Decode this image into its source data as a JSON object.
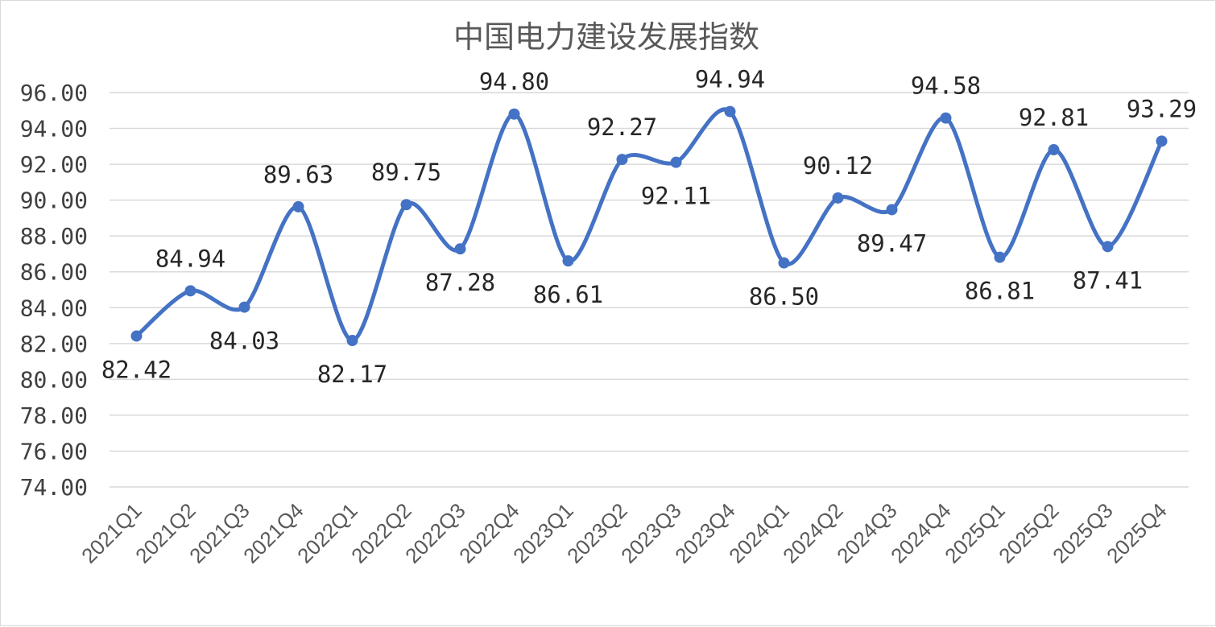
{
  "chart_data": {
    "type": "line",
    "title": "中国电力建设发展指数",
    "categories": [
      "2021Q1",
      "2021Q2",
      "2021Q3",
      "2021Q4",
      "2022Q1",
      "2022Q2",
      "2022Q3",
      "2022Q4",
      "2023Q1",
      "2023Q2",
      "2023Q3",
      "2023Q4",
      "2024Q1",
      "2024Q2",
      "2024Q3",
      "2024Q4",
      "2025Q1",
      "2025Q2",
      "2025Q3",
      "2025Q4"
    ],
    "values": [
      82.42,
      84.94,
      84.03,
      89.63,
      82.17,
      89.75,
      87.28,
      94.8,
      86.61,
      92.27,
      92.11,
      94.94,
      86.5,
      90.12,
      89.47,
      94.58,
      86.81,
      92.81,
      87.41,
      93.29
    ],
    "data_labels": [
      "82.42",
      "84.94",
      "84.03",
      "89.63",
      "82.17",
      "89.75",
      "87.28",
      "94.80",
      "86.61",
      "92.27",
      "92.11",
      "94.94",
      "86.50",
      "90.12",
      "89.47",
      "94.58",
      "86.81",
      "92.81",
      "87.41",
      "93.29"
    ],
    "y_tick_labels": [
      "74.00",
      "76.00",
      "78.00",
      "80.00",
      "82.00",
      "84.00",
      "86.00",
      "88.00",
      "90.00",
      "92.00",
      "94.00",
      "96.00"
    ],
    "ylim": [
      74,
      96
    ],
    "xlabel": "",
    "ylabel": "",
    "grid": true,
    "legend": "none",
    "line_style": "smooth",
    "colors": {
      "series": "#4472c4",
      "grid": "#d9d9d9",
      "title": "#595959",
      "labels": "#262626"
    }
  }
}
